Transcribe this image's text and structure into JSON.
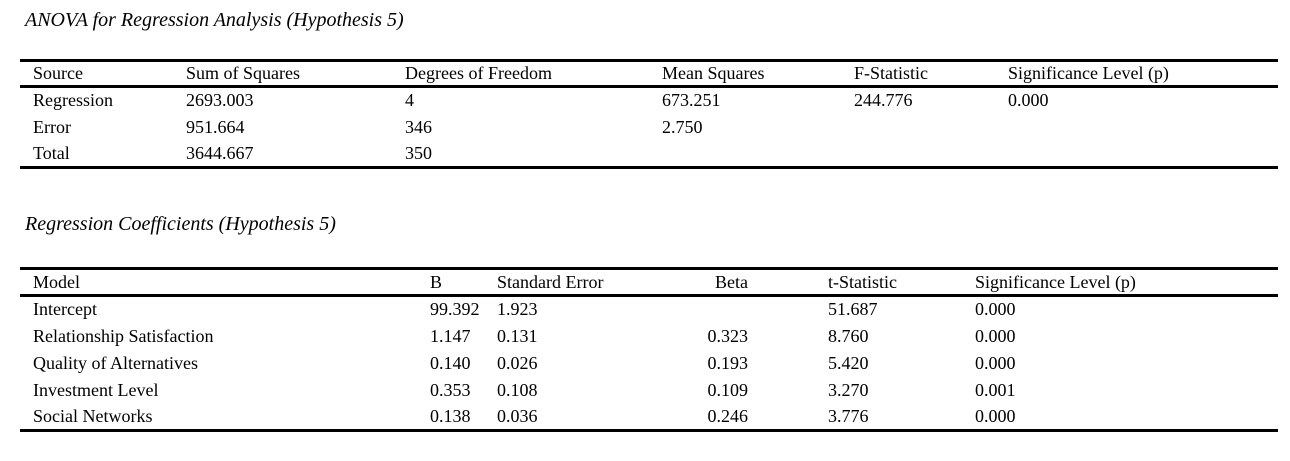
{
  "colors": {
    "background": "#ffffff",
    "text": "#000000",
    "rule": "#000000"
  },
  "anova_table": {
    "title": "ANOVA for Regression Analysis (Hypothesis 5)",
    "columns": [
      "Source",
      "Sum of Squares",
      "Degrees of Freedom",
      "Mean Squares",
      "F-Statistic",
      "Significance Level (p)"
    ],
    "rows": [
      [
        "Regression",
        "2693.003",
        "4",
        "673.251",
        "244.776",
        "0.000"
      ],
      [
        "Error",
        "951.664",
        "346",
        "2.750",
        "",
        ""
      ],
      [
        "Total",
        "3644.667",
        "350",
        "",
        "",
        ""
      ]
    ]
  },
  "coefficients_table": {
    "title": "Regression Coefficients (Hypothesis 5)",
    "columns": [
      "Model",
      "B",
      "Standard Error",
      "Beta",
      "t-Statistic",
      "Significance Level (p)"
    ],
    "rows": [
      [
        "Intercept",
        "99.392",
        "1.923",
        "",
        "51.687",
        "0.000"
      ],
      [
        "Relationship Satisfaction",
        "1.147",
        "0.131",
        "0.323",
        "8.760",
        "0.000"
      ],
      [
        "Quality of Alternatives",
        "0.140",
        "0.026",
        "0.193",
        "5.420",
        "0.000"
      ],
      [
        "Investment Level",
        "0.353",
        "0.108",
        "0.109",
        "3.270",
        "0.001"
      ],
      [
        "Social Networks",
        "0.138",
        "0.036",
        "0.246",
        "3.776",
        "0.000"
      ]
    ]
  }
}
